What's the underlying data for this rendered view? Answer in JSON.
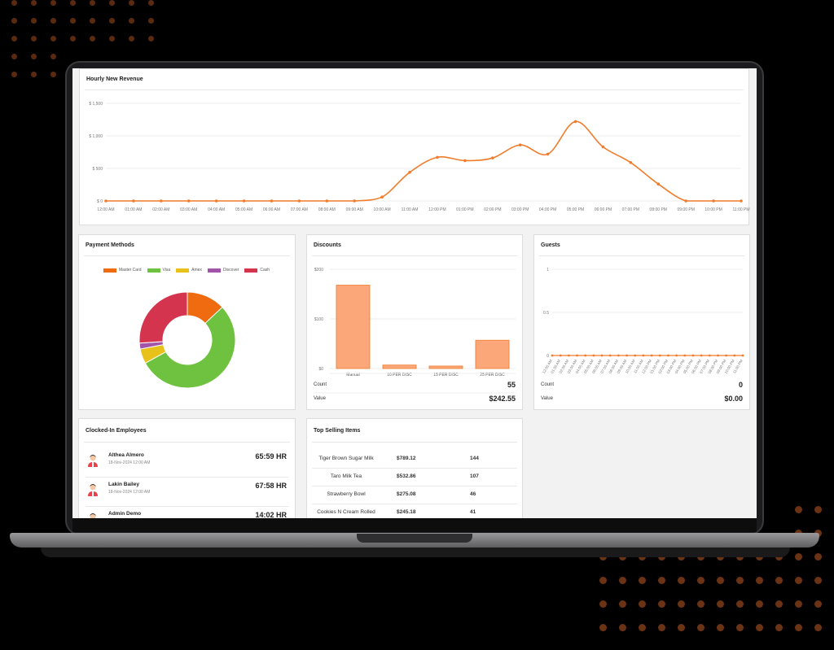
{
  "revenue": {
    "title": "Hourly New Revenue",
    "chart_data": {
      "type": "line",
      "title": "Hourly New Revenue",
      "y_ticks": [
        "$ 1,500",
        "$ 1,000",
        "$ 500",
        "$ 0"
      ],
      "ylim": [
        0,
        1500
      ],
      "categories": [
        "12:00 AM",
        "01:00 AM",
        "02:00 AM",
        "03:00 AM",
        "04:00 AM",
        "05:00 AM",
        "06:00 AM",
        "07:00 AM",
        "08:00 AM",
        "09:00 AM",
        "10:00 AM",
        "11:00 AM",
        "12:00 PM",
        "01:00 PM",
        "02:00 PM",
        "03:00 PM",
        "04:00 PM",
        "05:00 PM",
        "06:00 PM",
        "07:00 PM",
        "08:00 PM",
        "09:00 PM",
        "10:00 PM",
        "11:00 PM"
      ],
      "values": [
        0,
        0,
        0,
        0,
        0,
        0,
        0,
        0,
        0,
        0,
        60,
        440,
        670,
        620,
        660,
        860,
        720,
        1220,
        830,
        590,
        260,
        0,
        0,
        0
      ],
      "color": "#f07c2c"
    }
  },
  "payment": {
    "title": "Payment Methods",
    "chart_data": {
      "type": "pie",
      "labels": [
        "Master Card",
        "Visa",
        "Amex",
        "Discover",
        "Cash"
      ],
      "values": [
        13,
        54,
        5,
        2,
        26
      ],
      "colors": [
        "#f06a0f",
        "#6fc23f",
        "#e8c21a",
        "#a254a8",
        "#d4344e"
      ]
    }
  },
  "discounts": {
    "title": "Discounts",
    "chart_data": {
      "type": "bar",
      "categories": [
        "Manual",
        "10 PER DISC",
        "15 PER DISC",
        "25 PER DISC"
      ],
      "values": [
        168,
        7,
        5,
        57
      ],
      "y_ticks": [
        "$200",
        "$100",
        "$0"
      ],
      "ylim": [
        0,
        200
      ],
      "color": "#fba77a"
    },
    "count_label": "Count",
    "count_value": "55",
    "value_label": "Value",
    "value_value": "$242.55"
  },
  "guests": {
    "title": "Guests",
    "chart_data": {
      "type": "line",
      "y_ticks": [
        "1",
        "0.5",
        "0"
      ],
      "ylim": [
        0,
        1
      ],
      "categories": [
        "12:00 AM",
        "01:00 AM",
        "02:00 AM",
        "03:00 AM",
        "04:00 AM",
        "05:00 AM",
        "06:00 AM",
        "07:00 AM",
        "08:00 AM",
        "09:00 AM",
        "10:00 AM",
        "11:00 AM",
        "12:00 PM",
        "01:00 PM",
        "02:00 PM",
        "03:00 PM",
        "04:00 PM",
        "05:00 PM",
        "06:00 PM",
        "07:00 PM",
        "08:00 PM",
        "09:00 PM",
        "10:00 PM",
        "11:00 PM"
      ],
      "values": [
        0,
        0,
        0,
        0,
        0,
        0,
        0,
        0,
        0,
        0,
        0,
        0,
        0,
        0,
        0,
        0,
        0,
        0,
        0,
        0,
        0,
        0,
        0,
        0
      ],
      "color": "#f07c2c"
    },
    "count_label": "Count",
    "count_value": "0",
    "value_label": "Value",
    "value_value": "$0.00"
  },
  "employees": {
    "title": "Clocked-In Employees",
    "rows": [
      {
        "name": "Althea Almero",
        "date": "18-Nov-2024 12:00 AM",
        "hours": "65:59 HR"
      },
      {
        "name": "Lakin Bailey",
        "date": "18-Nov-2024 12:00 AM",
        "hours": "67:58 HR"
      },
      {
        "name": "Admin Demo",
        "date": "",
        "hours": "14:02 HR"
      }
    ]
  },
  "top_items": {
    "title": "Top Selling Items",
    "rows": [
      {
        "name": "Tiger Brown Sugar Milk",
        "amount": "$789.12",
        "qty": "144"
      },
      {
        "name": "Taro Milk Tea",
        "amount": "$532.86",
        "qty": "107"
      },
      {
        "name": "Strawberry Bowl",
        "amount": "$275.08",
        "qty": "46"
      },
      {
        "name": "Cookies N Cream Rolled",
        "amount": "$245.18",
        "qty": "41"
      }
    ]
  }
}
